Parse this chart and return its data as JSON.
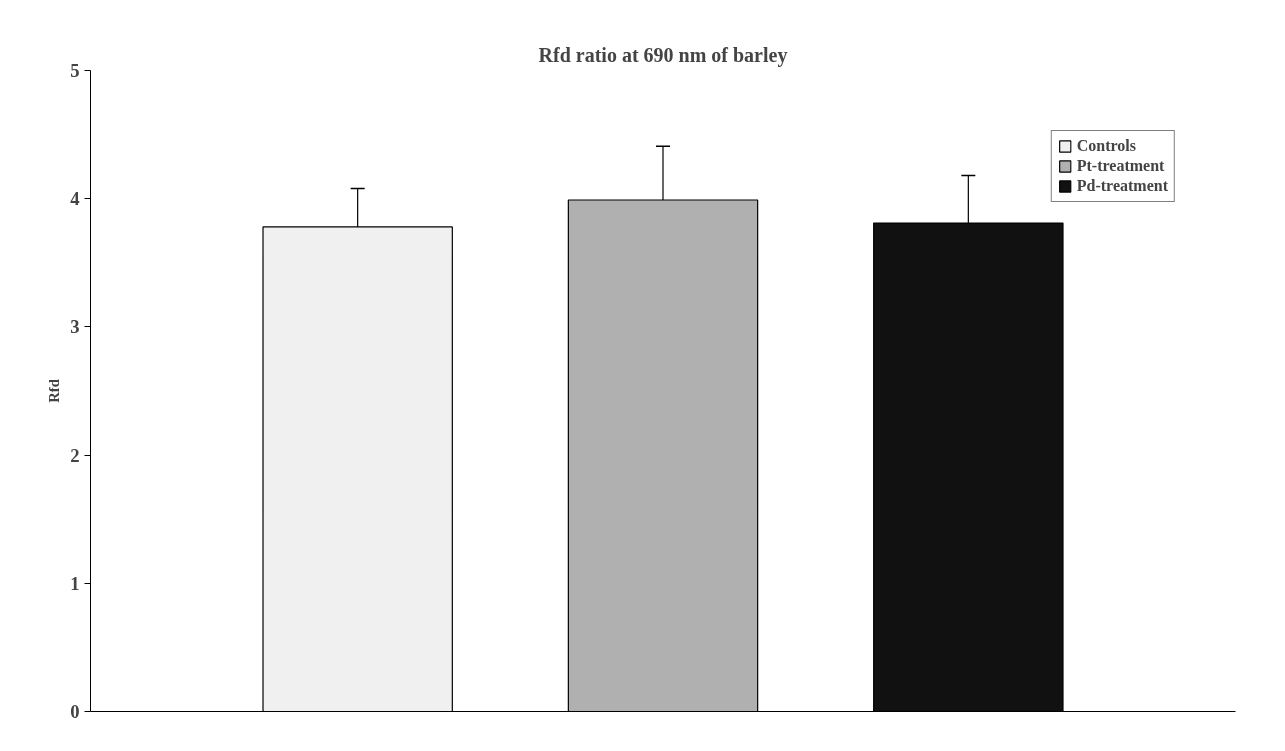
{
  "chart_data": {
    "type": "bar",
    "title": "Rfd ratio at 690 nm of barley",
    "ylabel": "Rfd",
    "categories": [
      null
    ],
    "series": [
      {
        "name": "Controls",
        "color": "#f0f0f0",
        "values": [
          3.78
        ],
        "errors": [
          0.3
        ]
      },
      {
        "name": "Pt-treatment",
        "color": "#b0b0b0",
        "values": [
          3.99
        ],
        "errors": [
          0.42
        ]
      },
      {
        "name": "Pd-treatment",
        "color": "#111111",
        "values": [
          3.81
        ],
        "errors": [
          0.37
        ]
      }
    ],
    "ylim": [
      0,
      5
    ],
    "yticks": [
      0,
      1,
      2,
      3,
      4,
      5
    ],
    "grid": false,
    "legend": "top right"
  }
}
